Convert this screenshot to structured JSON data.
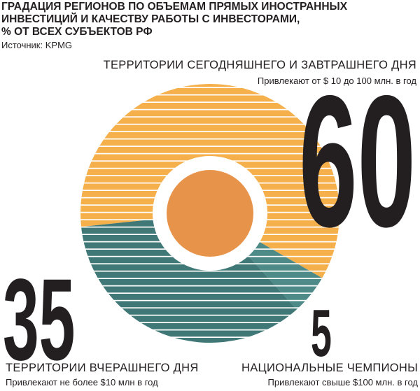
{
  "chart_data": {
    "type": "donut",
    "title": [
      "ГРАДАЦИЯ РЕГИОНОВ ПО ОБЪЕМАМ ПРЯМЫХ ИНОСТРАННЫХ",
      "ИНВЕСТИЦИЙ И КАЧЕСТВУ РАБОТЫ С ИНВЕСТОРАМИ,",
      "% ОТ ВСЕХ СУБЪЕКТОВ РФ"
    ],
    "source": "Источник: KPMG",
    "categories": [
      "ТЕРРИТОРИИ СЕГОДНЯШНЕГО И ЗАВТРАШНЕГО ДНЯ",
      "НАЦИОНАЛЬНЫЕ ЧЕМПИОНЫ",
      "ТЕРРИТОРИИ ВЧЕРАШНЕГО ДНЯ"
    ],
    "sublabels": [
      "Привлекают от $ 10 до 100 млн. в год",
      "Привлекают свыше $100 млн. в год",
      "Привлекают не более $10 млн в год"
    ],
    "values": [
      60,
      5,
      35
    ],
    "colors": [
      "#f5b04c",
      "#4d8a88",
      "#3f7876"
    ]
  }
}
